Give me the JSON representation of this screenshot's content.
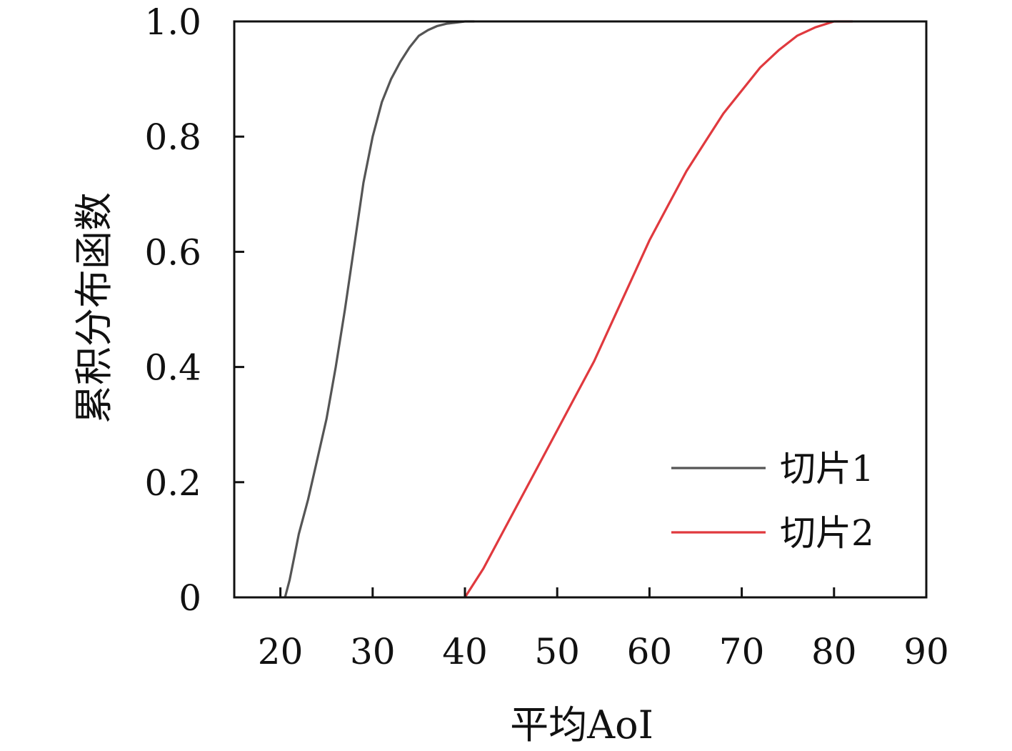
{
  "chart_data": {
    "type": "line",
    "title": "",
    "xlabel": "平均AoI",
    "ylabel": "累积分布函数",
    "xlim": [
      15,
      90
    ],
    "ylim": [
      0,
      1.0
    ],
    "x_ticks": [
      20,
      30,
      40,
      50,
      60,
      70,
      80,
      90
    ],
    "x_tick_labels": [
      "20",
      "30",
      "40",
      "50",
      "60",
      "70",
      "80",
      "90"
    ],
    "y_ticks": [
      0,
      0.2,
      0.4,
      0.6,
      0.8,
      1.0
    ],
    "y_tick_labels": [
      "0",
      "0.2",
      "0.4",
      "0.6",
      "0.8",
      "1.0"
    ],
    "grid": false,
    "legend_position": "lower-right",
    "series": [
      {
        "name": "切片1",
        "color": "#555555",
        "x": [
          20.5,
          21.0,
          21.5,
          22.0,
          22.5,
          23.0,
          24.0,
          25.0,
          26.0,
          27.0,
          28.0,
          29.0,
          30.0,
          31.0,
          32.0,
          33.0,
          34.0,
          35.0,
          36.0,
          37.0,
          38.0,
          39.0,
          40.0,
          41.0
        ],
        "y": [
          0.0,
          0.03,
          0.07,
          0.11,
          0.14,
          0.17,
          0.24,
          0.31,
          0.4,
          0.5,
          0.61,
          0.72,
          0.8,
          0.86,
          0.9,
          0.93,
          0.955,
          0.975,
          0.985,
          0.992,
          0.996,
          0.998,
          1.0,
          1.0
        ]
      },
      {
        "name": "切片2",
        "color": "#e0393e",
        "x": [
          40.0,
          42.0,
          44.0,
          46.0,
          48.0,
          50.0,
          52.0,
          54.0,
          56.0,
          58.0,
          60.0,
          62.0,
          64.0,
          66.0,
          68.0,
          70.0,
          72.0,
          74.0,
          76.0,
          78.0,
          80.0,
          82.0
        ],
        "y": [
          0.0,
          0.05,
          0.11,
          0.17,
          0.23,
          0.29,
          0.35,
          0.41,
          0.48,
          0.55,
          0.62,
          0.68,
          0.74,
          0.79,
          0.84,
          0.88,
          0.92,
          0.95,
          0.975,
          0.99,
          1.0,
          1.0
        ]
      }
    ]
  }
}
